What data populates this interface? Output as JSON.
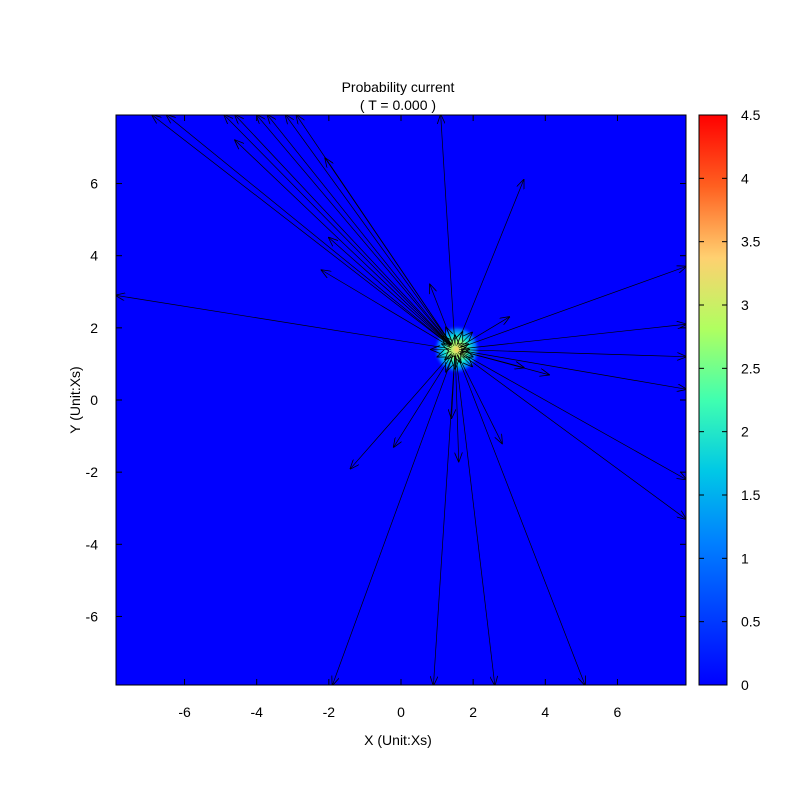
{
  "chart_data": {
    "type": "heatmap",
    "title": "Probability current",
    "subtitle": "( T = 0.000 )",
    "xlabel": "X (Unit:Xs)",
    "ylabel": "Y (Unit:Xs)",
    "xlim": [
      -7.9,
      7.9
    ],
    "ylim": [
      -7.9,
      7.9
    ],
    "xticks": [
      -6,
      -4,
      -2,
      0,
      2,
      4,
      6
    ],
    "yticks": [
      -6,
      -4,
      -2,
      0,
      2,
      4,
      6
    ],
    "colorbar": {
      "range": [
        0,
        4.5
      ],
      "ticks": [
        0,
        0.5,
        1,
        1.5,
        2,
        2.5,
        3,
        3.5,
        4,
        4.5
      ],
      "tick_labels": [
        "0",
        "0.5",
        "1",
        "1.5",
        "2",
        "2.5",
        "3",
        "3.5",
        "4",
        "4.5"
      ],
      "colormap": "jet"
    },
    "density_peak": {
      "x": 1.55,
      "y": 1.4,
      "value": 4.2,
      "spread": 0.22
    },
    "vector_field": {
      "origin": [
        1.5,
        1.4
      ],
      "arrow_tips": [
        [
          -6.9,
          7.9
        ],
        [
          -6.5,
          7.9
        ],
        [
          -4.9,
          7.9
        ],
        [
          -4.6,
          7.9
        ],
        [
          -4.0,
          7.9
        ],
        [
          -3.7,
          7.9
        ],
        [
          -3.2,
          7.9
        ],
        [
          -2.9,
          7.9
        ],
        [
          -4.6,
          7.2
        ],
        [
          -2.1,
          6.7
        ],
        [
          1.1,
          7.9
        ],
        [
          3.4,
          6.1
        ],
        [
          -2.0,
          4.5
        ],
        [
          -2.2,
          3.6
        ],
        [
          -7.9,
          2.9
        ],
        [
          0.8,
          3.2
        ],
        [
          7.9,
          3.7
        ],
        [
          7.9,
          2.1
        ],
        [
          7.9,
          1.2
        ],
        [
          3.0,
          2.3
        ],
        [
          3.4,
          0.9
        ],
        [
          4.1,
          0.7
        ],
        [
          7.9,
          0.3
        ],
        [
          7.9,
          -2.2
        ],
        [
          7.9,
          -3.3
        ],
        [
          2.8,
          -1.2
        ],
        [
          -1.4,
          -1.9
        ],
        [
          -0.2,
          -1.3
        ],
        [
          1.6,
          -1.7
        ],
        [
          1.4,
          -0.5
        ],
        [
          -1.9,
          -7.9
        ],
        [
          0.9,
          -7.9
        ],
        [
          2.6,
          -7.9
        ],
        [
          5.1,
          -7.9
        ]
      ]
    }
  }
}
